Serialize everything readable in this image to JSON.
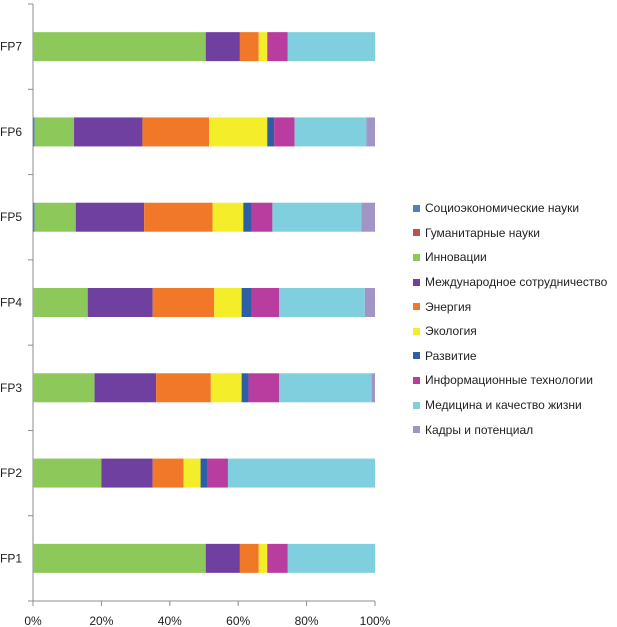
{
  "chart_data": {
    "type": "bar",
    "orientation": "horizontal",
    "stacked": "percent",
    "categories": [
      "FP1",
      "FP2",
      "FP3",
      "FP4",
      "FP5",
      "FP6",
      "FP7"
    ],
    "xlim": [
      0,
      100
    ],
    "xticks": [
      "0%",
      "20%",
      "40%",
      "60%",
      "80%",
      "100%"
    ],
    "grid": false,
    "legend_position": "right",
    "series": [
      {
        "name": "Социоэкономические науки",
        "color": "#4F81BD",
        "values": [
          0,
          0,
          0,
          0,
          0.5,
          0.5,
          0
        ]
      },
      {
        "name": "Гуманитарные науки",
        "color": "#C0504D",
        "values": [
          0,
          0,
          0,
          0,
          0,
          0,
          0
        ]
      },
      {
        "name": "Инновации",
        "color": "#8DC85A",
        "values": [
          50.5,
          20,
          18,
          16,
          12,
          11.5,
          50.5
        ]
      },
      {
        "name": "Международное сотрудничество",
        "color": "#7040A0",
        "values": [
          10,
          15,
          18,
          19,
          20,
          20,
          10
        ]
      },
      {
        "name": "Энергия",
        "color": "#F07828",
        "values": [
          5.5,
          9,
          16,
          18,
          20,
          19.5,
          5.5
        ]
      },
      {
        "name": "Экология",
        "color": "#F4EE2A",
        "values": [
          2.5,
          5,
          9,
          8,
          9,
          17,
          2.5
        ]
      },
      {
        "name": "Развитие",
        "color": "#2E5FA6",
        "values": [
          0,
          2,
          2,
          3,
          2.5,
          2,
          0
        ]
      },
      {
        "name": "Информационные технологии",
        "color": "#B83D9E",
        "values": [
          6,
          6,
          9,
          8,
          6,
          6,
          6
        ]
      },
      {
        "name": "Медицина и качество жизни",
        "color": "#80CFDF",
        "values": [
          25.5,
          43,
          27,
          25,
          26,
          21,
          25.5
        ]
      },
      {
        "name": "Кадры и потенциал",
        "color": "#A295C6",
        "values": [
          0,
          0,
          1,
          3,
          4,
          2.5,
          0
        ]
      }
    ]
  }
}
